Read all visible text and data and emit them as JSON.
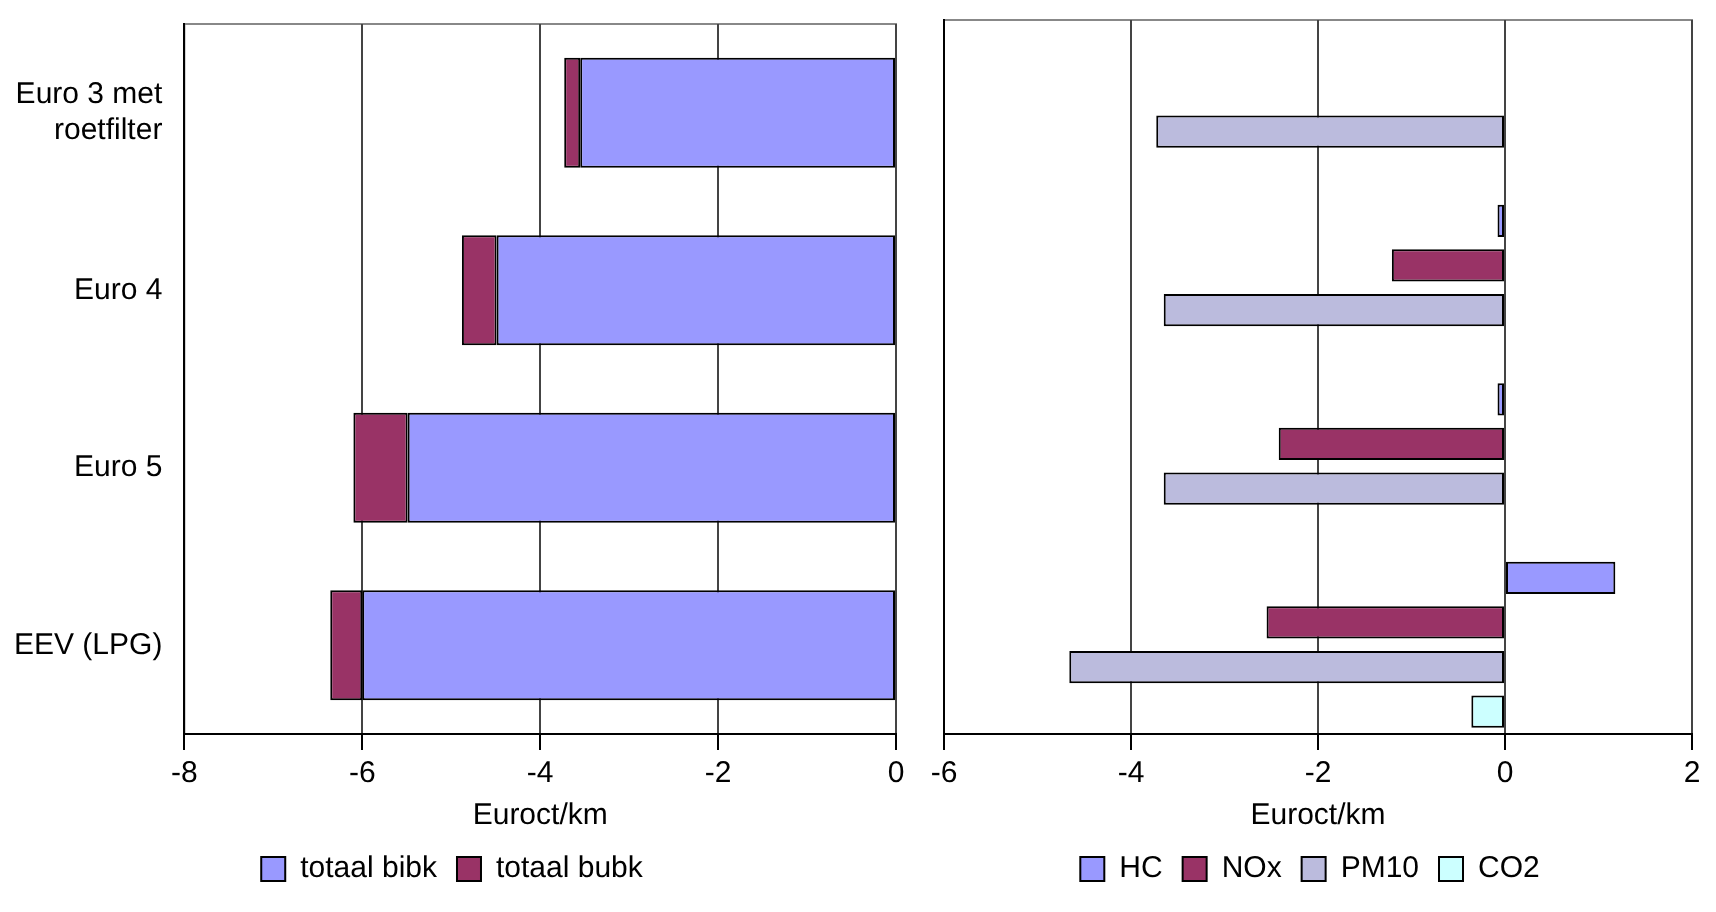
{
  "chart_data": [
    {
      "type": "bar",
      "orientation": "horizontal",
      "stacked": true,
      "categories": [
        "Euro 3 met roetfilter",
        "Euro 4",
        "Euro 5",
        "EEV (LPG)"
      ],
      "series": [
        {
          "name": "totaal bibk",
          "color": "#9999ff",
          "values": [
            -3.55,
            -4.49,
            -5.49,
            -6.0
          ]
        },
        {
          "name": "totaal bubk",
          "color": "#993366",
          "values": [
            -0.18,
            -0.39,
            -0.61,
            -0.36
          ]
        }
      ],
      "xlim": [
        -8,
        0
      ],
      "xticks": [
        -8,
        -6,
        -4,
        -2,
        0
      ],
      "xlabel": "Euroct/km",
      "grid": "x",
      "legend": "bottom"
    },
    {
      "type": "bar",
      "orientation": "horizontal",
      "categories": [
        null,
        null,
        null,
        null
      ],
      "series": [
        {
          "name": "HC",
          "color": "#9999ff",
          "values": [
            null,
            -0.08,
            -0.08,
            1.18
          ]
        },
        {
          "name": "NOx",
          "color": "#993366",
          "values": [
            null,
            -1.21,
            -2.42,
            -2.55
          ]
        },
        {
          "name": "PM10",
          "color": "#bbbbdd",
          "values": [
            -3.73,
            -3.65,
            -3.65,
            -4.66
          ]
        },
        {
          "name": "CO2",
          "color": "#ccffff",
          "values": [
            null,
            null,
            null,
            -0.36
          ]
        }
      ],
      "xlim": [
        -6,
        2
      ],
      "xticks": [
        -6,
        -4,
        -2,
        0,
        2
      ],
      "xlabel": "Euroct/km",
      "grid": "x",
      "legend": "bottom",
      "tick_labels": "x"
    }
  ]
}
